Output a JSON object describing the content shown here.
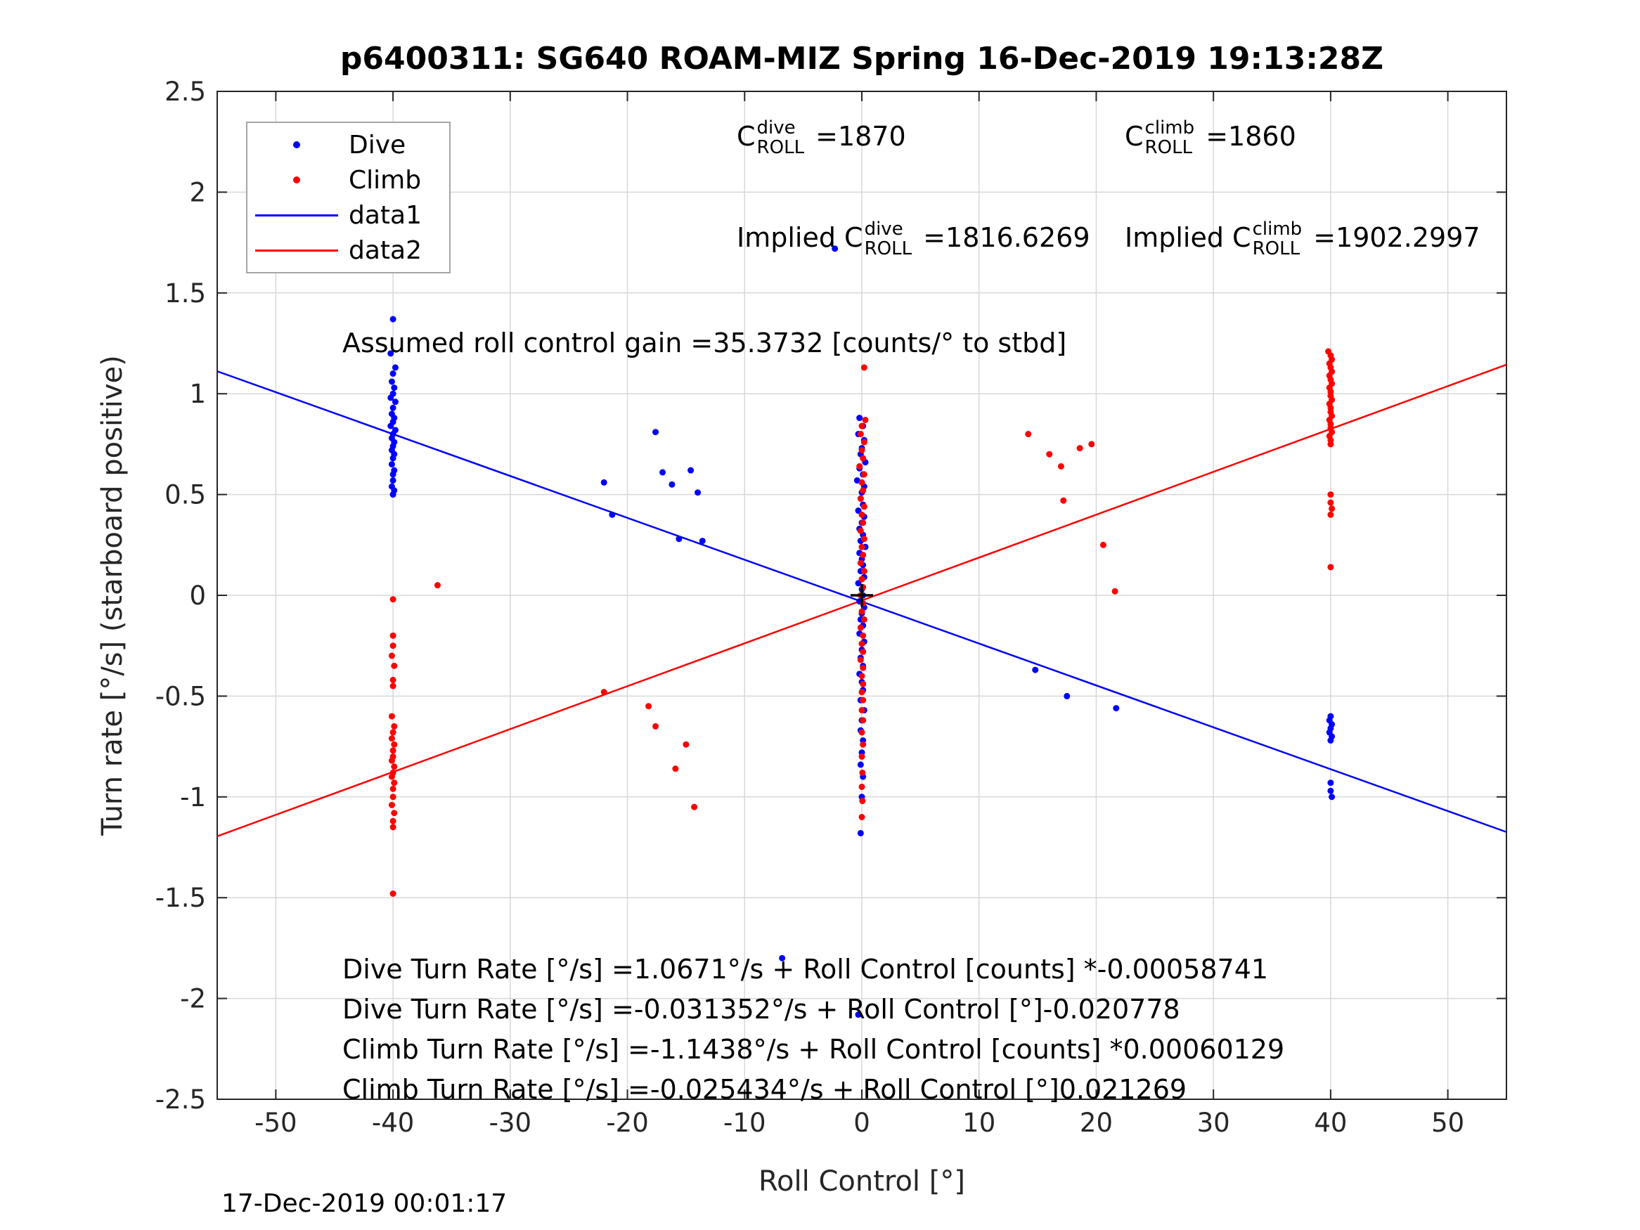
{
  "title": "p6400311: SG640 ROAM-MIZ Spring 16-Dec-2019 19:13:28Z",
  "axes": {
    "xlabel": "Roll Control [°]",
    "ylabel": "Turn rate [°/s] (starboard positive)"
  },
  "annotations": {
    "c_dive": {
      "prefix": "C",
      "sup": "dive",
      "sub": "ROLL",
      "value": " =1870"
    },
    "c_climb": {
      "prefix": "C",
      "sup": "climb",
      "sub": "ROLL",
      "value": " =1860"
    },
    "implied_dive": {
      "prefix": "Implied C",
      "sup": "dive",
      "sub": "ROLL",
      "value": " =1816.6269"
    },
    "implied_climb": {
      "prefix": "Implied C",
      "sup": "climb",
      "sub": "ROLL",
      "value": " =1902.2997"
    },
    "gain": "Assumed roll control gain =35.3732 [counts/° to stbd]",
    "fit_lines": [
      "Dive Turn Rate [°/s] =1.0671°/s + Roll Control [counts] *-0.00058741",
      "Dive Turn Rate [°/s] =-0.031352°/s + Roll Control [°]-0.020778",
      "Climb Turn Rate [°/s] =-1.1438°/s + Roll Control [counts] *0.00060129",
      "Climb Turn Rate [°/s] =-0.025434°/s + Roll Control [°]0.021269"
    ],
    "datestamp": "17-Dec-2019 00:01:17"
  },
  "legend": {
    "items": [
      {
        "label": "Dive",
        "marker": "dot",
        "color": "#0000ff"
      },
      {
        "label": "Climb",
        "marker": "dot",
        "color": "#ff0000"
      },
      {
        "label": "data1",
        "marker": "line",
        "color": "#0000ff"
      },
      {
        "label": "data2",
        "marker": "line",
        "color": "#ff0000"
      }
    ]
  },
  "chart_data": {
    "type": "scatter",
    "title": "p6400311: SG640 ROAM-MIZ Spring 16-Dec-2019 19:13:28Z",
    "xlabel": "Roll Control [°]",
    "ylabel": "Turn rate [°/s] (starboard positive)",
    "xlim": [
      -55,
      55
    ],
    "ylim": [
      -2.5,
      2.5
    ],
    "xticks": [
      -50,
      -40,
      -30,
      -20,
      -10,
      0,
      10,
      20,
      30,
      40,
      50
    ],
    "yticks": [
      -2.5,
      -2,
      -1.5,
      -1,
      -0.5,
      0,
      0.5,
      1,
      1.5,
      2,
      2.5
    ],
    "grid": true,
    "legend_position": "top-left",
    "colors": {
      "dive": "#0000ff",
      "climb": "#ff0000",
      "grid": "#d8d8d8",
      "axis": "#262626",
      "origin_marker": "#000000"
    },
    "series": [
      {
        "name": "Dive",
        "color": "#0000ff",
        "points": [
          [
            -40.0,
            1.37
          ],
          [
            -40.2,
            1.2
          ],
          [
            -39.8,
            1.13
          ],
          [
            -40.0,
            1.1
          ],
          [
            -40.1,
            1.06
          ],
          [
            -39.9,
            1.03
          ],
          [
            -40.0,
            1.0
          ],
          [
            -40.2,
            0.98
          ],
          [
            -39.8,
            0.96
          ],
          [
            -40.0,
            0.93
          ],
          [
            -40.1,
            0.9
          ],
          [
            -39.9,
            0.88
          ],
          [
            -40.0,
            0.86
          ],
          [
            -40.2,
            0.84
          ],
          [
            -39.8,
            0.82
          ],
          [
            -40.0,
            0.8
          ],
          [
            -40.1,
            0.78
          ],
          [
            -39.9,
            0.76
          ],
          [
            -40.0,
            0.74
          ],
          [
            -40.1,
            0.72
          ],
          [
            -39.9,
            0.7
          ],
          [
            -40.0,
            0.68
          ],
          [
            -40.1,
            0.65
          ],
          [
            -39.9,
            0.62
          ],
          [
            -40.0,
            0.6
          ],
          [
            -40.0,
            0.57
          ],
          [
            -40.1,
            0.54
          ],
          [
            -39.9,
            0.52
          ],
          [
            -40.0,
            0.5
          ],
          [
            -22.0,
            0.56
          ],
          [
            -21.3,
            0.4
          ],
          [
            -17.6,
            0.81
          ],
          [
            -17.0,
            0.61
          ],
          [
            -16.2,
            0.55
          ],
          [
            -15.6,
            0.28
          ],
          [
            -14.6,
            0.62
          ],
          [
            -14.0,
            0.51
          ],
          [
            -13.6,
            0.27
          ],
          [
            -2.3,
            1.72
          ],
          [
            -6.8,
            -1.8
          ],
          [
            -0.3,
            -2.08
          ],
          [
            -0.2,
            0.88
          ],
          [
            0.1,
            0.84
          ],
          [
            -0.3,
            0.8
          ],
          [
            0.2,
            0.77
          ],
          [
            0.0,
            0.73
          ],
          [
            -0.1,
            0.7
          ],
          [
            0.3,
            0.66
          ],
          [
            -0.2,
            0.63
          ],
          [
            0.1,
            0.6
          ],
          [
            -0.4,
            0.57
          ],
          [
            0.2,
            0.54
          ],
          [
            0.0,
            0.51
          ],
          [
            -0.1,
            0.48
          ],
          [
            0.1,
            0.45
          ],
          [
            -0.3,
            0.42
          ],
          [
            0.2,
            0.39
          ],
          [
            0.0,
            0.36
          ],
          [
            -0.2,
            0.33
          ],
          [
            0.1,
            0.3
          ],
          [
            -0.1,
            0.27
          ],
          [
            0.3,
            0.24
          ],
          [
            -0.2,
            0.21
          ],
          [
            0.0,
            0.18
          ],
          [
            0.1,
            0.15
          ],
          [
            -0.1,
            0.12
          ],
          [
            0.2,
            0.09
          ],
          [
            -0.3,
            0.06
          ],
          [
            0.0,
            0.03
          ],
          [
            0.1,
            0.0
          ],
          [
            -0.2,
            -0.03
          ],
          [
            0.2,
            -0.06
          ],
          [
            0.0,
            -0.09
          ],
          [
            -0.1,
            -0.12
          ],
          [
            0.1,
            -0.15
          ],
          [
            -0.2,
            -0.19
          ],
          [
            0.2,
            -0.23
          ],
          [
            0.0,
            -0.27
          ],
          [
            -0.1,
            -0.31
          ],
          [
            0.1,
            -0.35
          ],
          [
            -0.2,
            -0.39
          ],
          [
            0.0,
            -0.43
          ],
          [
            0.1,
            -0.47
          ],
          [
            -0.1,
            -0.52
          ],
          [
            0.2,
            -0.57
          ],
          [
            0.0,
            -0.62
          ],
          [
            -0.1,
            -0.67
          ],
          [
            0.1,
            -0.72
          ],
          [
            0.0,
            -0.78
          ],
          [
            -0.1,
            -0.84
          ],
          [
            0.1,
            -0.9
          ],
          [
            0.0,
            -1.0
          ],
          [
            -0.1,
            -1.18
          ],
          [
            14.8,
            -0.37
          ],
          [
            17.5,
            -0.5
          ],
          [
            21.7,
            -0.56
          ],
          [
            40.0,
            -0.6
          ],
          [
            39.9,
            -0.62
          ],
          [
            40.1,
            -0.64
          ],
          [
            40.0,
            -0.66
          ],
          [
            39.9,
            -0.68
          ],
          [
            40.1,
            -0.7
          ],
          [
            40.0,
            -0.72
          ],
          [
            40.0,
            -0.93
          ],
          [
            40.0,
            -0.97
          ],
          [
            40.1,
            -1.0
          ]
        ]
      },
      {
        "name": "Climb",
        "color": "#ff0000",
        "points": [
          [
            -40.0,
            -0.02
          ],
          [
            -40.0,
            -0.2
          ],
          [
            -40.0,
            -0.25
          ],
          [
            -40.1,
            -0.3
          ],
          [
            -39.9,
            -0.35
          ],
          [
            -40.0,
            -0.42
          ],
          [
            -40.0,
            -0.45
          ],
          [
            -40.1,
            -0.6
          ],
          [
            -39.9,
            -0.65
          ],
          [
            -40.0,
            -0.68
          ],
          [
            -40.1,
            -0.71
          ],
          [
            -39.9,
            -0.74
          ],
          [
            -40.0,
            -0.77
          ],
          [
            -40.0,
            -0.8
          ],
          [
            -40.1,
            -0.82
          ],
          [
            -39.9,
            -0.85
          ],
          [
            -40.0,
            -0.88
          ],
          [
            -40.1,
            -0.9
          ],
          [
            -39.9,
            -0.93
          ],
          [
            -40.0,
            -0.96
          ],
          [
            -40.0,
            -1.0
          ],
          [
            -40.1,
            -1.04
          ],
          [
            -39.9,
            -1.08
          ],
          [
            -40.0,
            -1.12
          ],
          [
            -40.0,
            -1.15
          ],
          [
            -40.0,
            -1.48
          ],
          [
            -36.2,
            0.05
          ],
          [
            -22.0,
            -0.48
          ],
          [
            -18.2,
            -0.55
          ],
          [
            -17.6,
            -0.65
          ],
          [
            -15.9,
            -0.86
          ],
          [
            -15.0,
            -0.74
          ],
          [
            -14.3,
            -1.05
          ],
          [
            0.2,
            1.13
          ],
          [
            0.3,
            0.87
          ],
          [
            0.0,
            0.84
          ],
          [
            -0.1,
            0.8
          ],
          [
            0.2,
            0.76
          ],
          [
            0.0,
            0.72
          ],
          [
            0.1,
            0.68
          ],
          [
            -0.2,
            0.64
          ],
          [
            0.2,
            0.6
          ],
          [
            0.0,
            0.56
          ],
          [
            0.1,
            0.52
          ],
          [
            -0.1,
            0.48
          ],
          [
            0.2,
            0.44
          ],
          [
            0.0,
            0.4
          ],
          [
            0.1,
            0.36
          ],
          [
            -0.1,
            0.32
          ],
          [
            0.2,
            0.28
          ],
          [
            0.0,
            0.24
          ],
          [
            0.1,
            0.2
          ],
          [
            -0.1,
            0.16
          ],
          [
            0.2,
            0.12
          ],
          [
            0.0,
            0.08
          ],
          [
            0.1,
            0.04
          ],
          [
            -0.1,
            0.0
          ],
          [
            0.1,
            -0.04
          ],
          [
            0.0,
            -0.08
          ],
          [
            0.2,
            -0.12
          ],
          [
            -0.1,
            -0.16
          ],
          [
            0.1,
            -0.2
          ],
          [
            0.0,
            -0.24
          ],
          [
            0.1,
            -0.28
          ],
          [
            -0.1,
            -0.32
          ],
          [
            0.1,
            -0.36
          ],
          [
            0.0,
            -0.4
          ],
          [
            0.1,
            -0.44
          ],
          [
            0.0,
            -0.48
          ],
          [
            0.1,
            -0.52
          ],
          [
            0.0,
            -0.57
          ],
          [
            0.1,
            -0.62
          ],
          [
            0.0,
            -0.68
          ],
          [
            0.1,
            -0.74
          ],
          [
            0.0,
            -0.8
          ],
          [
            0.05,
            -0.88
          ],
          [
            0.0,
            -0.95
          ],
          [
            0.05,
            -1.02
          ],
          [
            0.0,
            -1.1
          ],
          [
            14.2,
            0.8
          ],
          [
            16.0,
            0.7
          ],
          [
            17.0,
            0.64
          ],
          [
            18.6,
            0.73
          ],
          [
            19.6,
            0.75
          ],
          [
            17.2,
            0.47
          ],
          [
            20.6,
            0.25
          ],
          [
            21.6,
            0.02
          ],
          [
            39.8,
            1.21
          ],
          [
            40.0,
            1.19
          ],
          [
            40.1,
            1.17
          ],
          [
            39.9,
            1.15
          ],
          [
            40.0,
            1.13
          ],
          [
            40.1,
            1.11
          ],
          [
            39.9,
            1.09
          ],
          [
            40.0,
            1.07
          ],
          [
            40.1,
            1.05
          ],
          [
            39.9,
            1.03
          ],
          [
            40.0,
            1.01
          ],
          [
            40.0,
            0.99
          ],
          [
            40.1,
            0.97
          ],
          [
            39.9,
            0.95
          ],
          [
            40.0,
            0.93
          ],
          [
            40.0,
            0.91
          ],
          [
            40.1,
            0.89
          ],
          [
            39.9,
            0.87
          ],
          [
            40.0,
            0.85
          ],
          [
            40.0,
            0.83
          ],
          [
            40.1,
            0.81
          ],
          [
            39.9,
            0.79
          ],
          [
            40.0,
            0.77
          ],
          [
            40.0,
            0.75
          ],
          [
            40.0,
            0.5
          ],
          [
            40.0,
            0.46
          ],
          [
            40.1,
            0.43
          ],
          [
            40.0,
            0.4
          ],
          [
            40.0,
            0.14
          ]
        ]
      }
    ],
    "lines": [
      {
        "name": "data1",
        "color": "#0000ff",
        "slope": -0.020778,
        "intercept": -0.031352
      },
      {
        "name": "data2",
        "color": "#ff0000",
        "slope": 0.021269,
        "intercept": -0.025434
      }
    ],
    "origin_marker": {
      "x": 0,
      "y": 0,
      "symbol": "+",
      "color": "#000000"
    }
  }
}
